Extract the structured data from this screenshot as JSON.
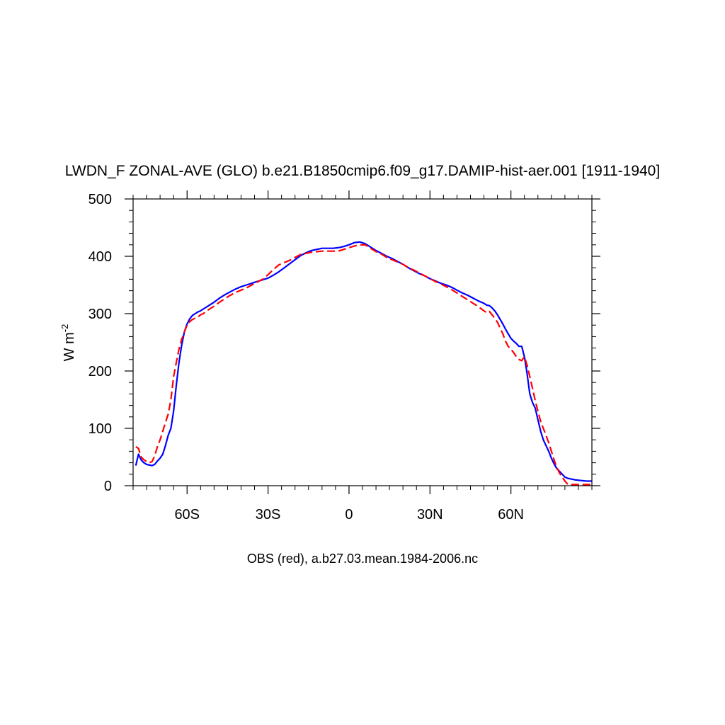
{
  "chart_data": {
    "type": "line",
    "title": "LWDN_F ZONAL-AVE (GLO) b.e21.B1850cmip6.f09_g17.DAMIP-hist-aer.001 [1911-1940]",
    "xlabel": "OBS (red), a.b27.03.mean.1984-2006.nc",
    "ylabel": "W m",
    "ylabel_sup": "-2",
    "xlim": [
      -80,
      90
    ],
    "ylim": [
      0,
      500
    ],
    "x_ticks": [
      {
        "value": -60,
        "label": "60S"
      },
      {
        "value": -30,
        "label": "30S"
      },
      {
        "value": 0,
        "label": "0"
      },
      {
        "value": 30,
        "label": "30N"
      },
      {
        "value": 60,
        "label": "60N"
      }
    ],
    "x_minor_step": 5,
    "y_ticks": [
      {
        "value": 0,
        "label": "0"
      },
      {
        "value": 100,
        "label": "100"
      },
      {
        "value": 200,
        "label": "200"
      },
      {
        "value": 300,
        "label": "300"
      },
      {
        "value": 400,
        "label": "400"
      },
      {
        "value": 500,
        "label": "500"
      }
    ],
    "y_minor_step": 20,
    "grid": false,
    "series": [
      {
        "color": "#0000ff",
        "dash": "solid",
        "x": [
          -79,
          -78,
          -77,
          -76,
          -75,
          -74,
          -73,
          -72,
          -71,
          -70,
          -69,
          -68,
          -67,
          -66,
          -65,
          -64,
          -63,
          -62,
          -61,
          -60,
          -59,
          -58,
          -57,
          -56,
          -55,
          -54,
          -52,
          -50,
          -48,
          -46,
          -44,
          -42,
          -40,
          -38,
          -36,
          -34,
          -32,
          -30,
          -28,
          -26,
          -24,
          -22,
          -20,
          -18,
          -16,
          -14,
          -12,
          -10,
          -8,
          -6,
          -4,
          -2,
          0,
          2,
          4,
          6,
          8,
          10,
          12,
          14,
          16,
          18,
          20,
          22,
          24,
          26,
          28,
          30,
          32,
          34,
          36,
          38,
          40,
          42,
          44,
          46,
          48,
          50,
          51,
          52,
          53,
          54,
          55,
          56,
          57,
          58,
          59,
          60,
          61,
          62,
          63,
          64,
          65,
          66,
          67,
          68,
          69,
          70,
          71,
          72,
          73,
          74,
          75,
          76,
          77,
          78,
          79,
          80,
          81,
          82,
          83,
          84,
          86,
          88,
          90
        ],
        "y": [
          35,
          55,
          45,
          40,
          37,
          36,
          35,
          37,
          43,
          48,
          55,
          70,
          88,
          100,
          130,
          175,
          215,
          245,
          268,
          282,
          291,
          297,
          300,
          303,
          305,
          308,
          314,
          320,
          327,
          333,
          338,
          343,
          347,
          350,
          353,
          356,
          359,
          362,
          367,
          373,
          380,
          387,
          394,
          401,
          406,
          410,
          412,
          414,
          414,
          414,
          415,
          417,
          420,
          424,
          425,
          422,
          416,
          410,
          405,
          400,
          396,
          391,
          386,
          380,
          375,
          370,
          366,
          361,
          357,
          353,
          350,
          346,
          341,
          336,
          332,
          327,
          322,
          318,
          315,
          314,
          310,
          305,
          298,
          290,
          282,
          273,
          265,
          257,
          252,
          248,
          243,
          243,
          225,
          195,
          160,
          145,
          135,
          115,
          95,
          80,
          70,
          60,
          48,
          38,
          30,
          25,
          20,
          15,
          13,
          12,
          11,
          10,
          9,
          8,
          8
        ]
      },
      {
        "color": "#ff0000",
        "dash": "dashed",
        "x": [
          -79,
          -78,
          -77,
          -76,
          -75,
          -74,
          -73,
          -72,
          -71,
          -70,
          -69,
          -68,
          -67,
          -66,
          -65,
          -64,
          -63,
          -62,
          -61,
          -60,
          -59,
          -58,
          -57,
          -56,
          -55,
          -54,
          -52,
          -50,
          -48,
          -46,
          -44,
          -42,
          -40,
          -38,
          -36,
          -34,
          -32,
          -30,
          -28,
          -26,
          -24,
          -22,
          -20,
          -18,
          -16,
          -14,
          -12,
          -10,
          -8,
          -6,
          -4,
          -2,
          0,
          2,
          4,
          6,
          8,
          10,
          12,
          14,
          16,
          18,
          20,
          22,
          24,
          26,
          28,
          30,
          32,
          34,
          36,
          38,
          40,
          42,
          44,
          46,
          48,
          50,
          51,
          52,
          53,
          54,
          55,
          56,
          57,
          58,
          59,
          60,
          61,
          62,
          63,
          64,
          65,
          66,
          67,
          68,
          69,
          70,
          71,
          72,
          73,
          74,
          75,
          76,
          77,
          78,
          79,
          80,
          81,
          82,
          83,
          84,
          86,
          88,
          90
        ],
        "y": [
          68,
          65,
          50,
          45,
          42,
          40,
          42,
          52,
          68,
          80,
          95,
          110,
          125,
          150,
          190,
          215,
          238,
          255,
          268,
          280,
          286,
          290,
          292,
          294,
          298,
          300,
          307,
          313,
          320,
          326,
          332,
          337,
          341,
          345,
          350,
          355,
          360,
          368,
          377,
          385,
          389,
          393,
          398,
          403,
          405,
          407,
          408,
          409,
          409,
          409,
          409,
          412,
          415,
          418,
          420,
          420,
          414,
          408,
          404,
          398,
          394,
          390,
          386,
          380,
          376,
          371,
          366,
          361,
          356,
          352,
          347,
          342,
          336,
          330,
          324,
          318,
          312,
          305,
          302,
          304,
          298,
          292,
          285,
          275,
          265,
          252,
          243,
          238,
          232,
          225,
          220,
          218,
          225,
          210,
          190,
          170,
          148,
          130,
          112,
          100,
          88,
          75,
          60,
          45,
          32,
          22,
          15,
          8,
          3,
          2,
          2,
          2,
          2,
          2,
          2
        ]
      }
    ]
  }
}
